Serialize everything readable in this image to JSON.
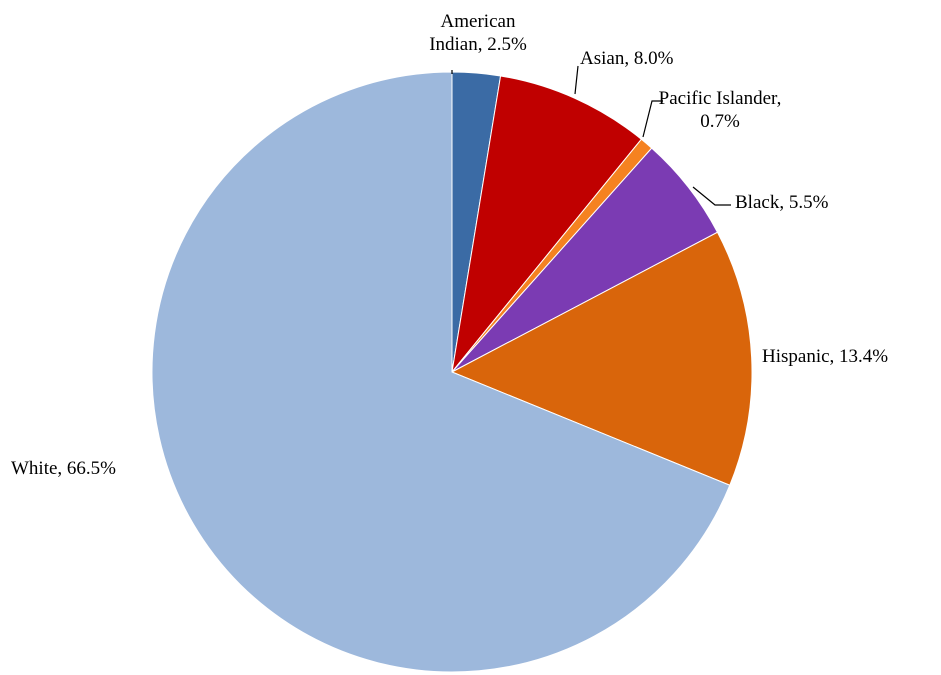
{
  "chart_data": {
    "type": "pie",
    "start_angle_deg": 0,
    "direction": "clockwise",
    "legend": "none",
    "slices": [
      {
        "name": "American Indian",
        "value": 2.5,
        "label_lines": [
          "American",
          "Indian, 2.5%"
        ],
        "color": "#3B6BA5"
      },
      {
        "name": "Asian",
        "value": 8.0,
        "label_lines": [
          "Asian, 8.0%"
        ],
        "color": "#C00000"
      },
      {
        "name": "Pacific Islander",
        "value": 0.7,
        "label_lines": [
          "Pacific Islander,",
          "0.7%"
        ],
        "color": "#F58220"
      },
      {
        "name": "Black",
        "value": 5.5,
        "label_lines": [
          "Black, 5.5%"
        ],
        "color": "#7B3BB3"
      },
      {
        "name": "Hispanic",
        "value": 13.4,
        "label_lines": [
          "Hispanic, 13.4%"
        ],
        "color": "#D9650B"
      },
      {
        "name": "White",
        "value": 66.5,
        "label_lines": [
          "White, 66.5%"
        ],
        "color": "#9DB8DC"
      }
    ]
  }
}
